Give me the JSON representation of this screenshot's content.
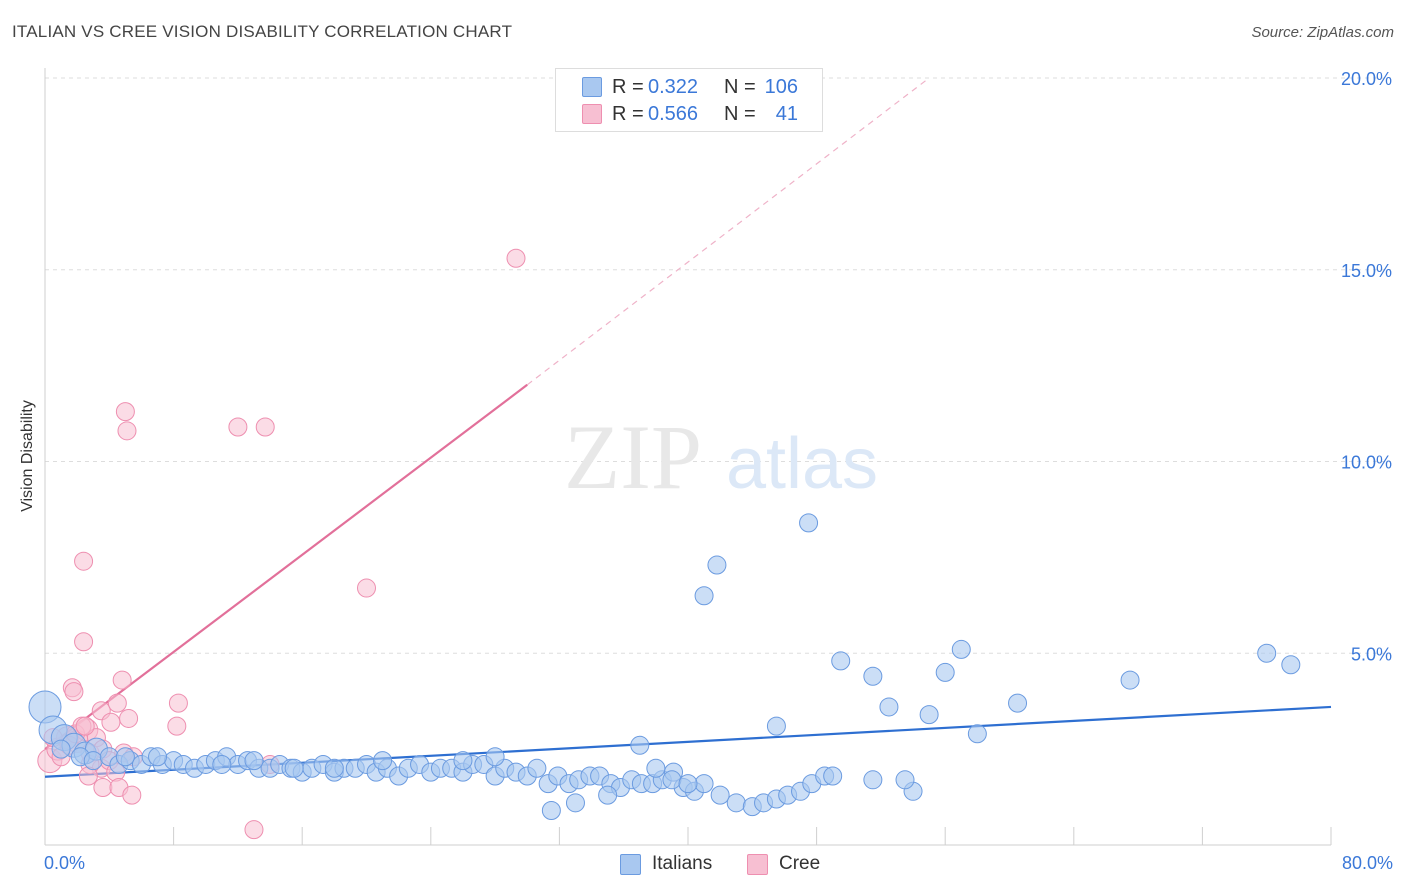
{
  "header": {
    "title": "ITALIAN VS CREE VISION DISABILITY CORRELATION CHART",
    "source": "Source: ZipAtlas.com"
  },
  "watermark": {
    "zip": "ZIP",
    "atlas": "atlas"
  },
  "stats": {
    "italians": {
      "r_label": "R =",
      "r_value": "0.322",
      "n_label": "N =",
      "n_value": "106"
    },
    "cree": {
      "r_label": "R =",
      "r_value": "0.566",
      "n_label": "N =",
      "n_value": "41"
    }
  },
  "legend": {
    "italians": "Italians",
    "cree": "Cree"
  },
  "colors": {
    "italians_fill": "#a9c8f0",
    "italians_stroke": "#6b9be0",
    "italians_line": "#2e6fd1",
    "cree_fill": "#f7bfd2",
    "cree_stroke": "#ee8fb0",
    "cree_line": "#e2709a",
    "tick_label": "#3b78d8",
    "grid": "#dddddd"
  },
  "chart_data": {
    "type": "scatter",
    "title": "ITALIAN VS CREE VISION DISABILITY CORRELATION CHART",
    "xlabel": "",
    "ylabel": "Vision Disability",
    "xlim": [
      0,
      80
    ],
    "ylim": [
      0,
      20
    ],
    "x_tick_labels": [
      "0.0%",
      "80.0%"
    ],
    "y_ticks": [
      5,
      10,
      15,
      20
    ],
    "y_tick_labels": [
      "5.0%",
      "10.0%",
      "15.0%",
      "20.0%"
    ],
    "grid": true,
    "legend_position": "bottom-center",
    "series": [
      {
        "name": "Italians",
        "r": 0.322,
        "n": 106,
        "trend": {
          "x": [
            0,
            80
          ],
          "y": [
            1.78,
            3.6
          ],
          "dashed_extension": false
        },
        "points": [
          [
            0,
            3.6,
            16
          ],
          [
            0.5,
            3.0,
            14
          ],
          [
            1.2,
            2.8,
            13
          ],
          [
            1.8,
            2.6,
            12
          ],
          [
            2.5,
            2.4,
            11
          ],
          [
            3.2,
            2.5,
            11
          ],
          [
            1.0,
            2.5,
            9
          ],
          [
            2.2,
            2.3,
            9
          ],
          [
            3.0,
            2.2,
            9
          ],
          [
            4.0,
            2.3,
            9
          ],
          [
            4.6,
            2.1,
            9
          ],
          [
            5.3,
            2.2,
            9
          ],
          [
            6.0,
            2.1,
            9
          ],
          [
            6.6,
            2.3,
            9
          ],
          [
            7.3,
            2.1,
            9
          ],
          [
            8.0,
            2.2,
            9
          ],
          [
            8.6,
            2.1,
            9
          ],
          [
            9.3,
            2.0,
            9
          ],
          [
            10.0,
            2.1,
            9
          ],
          [
            10.6,
            2.2,
            9
          ],
          [
            11.3,
            2.3,
            9
          ],
          [
            12.0,
            2.1,
            9
          ],
          [
            12.6,
            2.2,
            9
          ],
          [
            13.3,
            2.0,
            9
          ],
          [
            14.0,
            2.0,
            9
          ],
          [
            14.6,
            2.1,
            9
          ],
          [
            15.3,
            2.0,
            9
          ],
          [
            16.0,
            1.9,
            9
          ],
          [
            16.6,
            2.0,
            9
          ],
          [
            17.3,
            2.1,
            9
          ],
          [
            18.0,
            1.9,
            9
          ],
          [
            18.6,
            2.0,
            9
          ],
          [
            19.3,
            2.0,
            9
          ],
          [
            20.0,
            2.1,
            9
          ],
          [
            20.6,
            1.9,
            9
          ],
          [
            21.3,
            2.0,
            9
          ],
          [
            22.0,
            1.8,
            9
          ],
          [
            22.6,
            2.0,
            9
          ],
          [
            23.3,
            2.1,
            9
          ],
          [
            24.0,
            1.9,
            9
          ],
          [
            24.6,
            2.0,
            9
          ],
          [
            25.3,
            2.0,
            9
          ],
          [
            26.0,
            1.9,
            9
          ],
          [
            26.6,
            2.1,
            9
          ],
          [
            27.3,
            2.1,
            9
          ],
          [
            28.0,
            1.8,
            9
          ],
          [
            28.6,
            2.0,
            9
          ],
          [
            29.3,
            1.9,
            9
          ],
          [
            30.0,
            1.8,
            9
          ],
          [
            30.6,
            2.0,
            9
          ],
          [
            31.3,
            1.6,
            9
          ],
          [
            31.9,
            1.8,
            9
          ],
          [
            32.6,
            1.6,
            9
          ],
          [
            33.2,
            1.7,
            9
          ],
          [
            33.9,
            1.8,
            9
          ],
          [
            34.5,
            1.8,
            9
          ],
          [
            35.2,
            1.6,
            9
          ],
          [
            35.8,
            1.5,
            9
          ],
          [
            36.5,
            1.7,
            9
          ],
          [
            37.1,
            1.6,
            9
          ],
          [
            37.8,
            1.6,
            9
          ],
          [
            38.4,
            1.7,
            9
          ],
          [
            39.1,
            1.9,
            9
          ],
          [
            39.7,
            1.5,
            9
          ],
          [
            40.4,
            1.4,
            9
          ],
          [
            41.0,
            1.6,
            9
          ],
          [
            42.0,
            1.3,
            9
          ],
          [
            43.0,
            1.1,
            9
          ],
          [
            44.0,
            1.0,
            9
          ],
          [
            44.7,
            1.1,
            9
          ],
          [
            45.5,
            1.2,
            9
          ],
          [
            46.2,
            1.3,
            9
          ],
          [
            47.0,
            1.4,
            9
          ],
          [
            47.7,
            1.6,
            9
          ],
          [
            48.5,
            1.8,
            9
          ],
          [
            37.0,
            2.6,
            9
          ],
          [
            38.0,
            2.0,
            9
          ],
          [
            39.0,
            1.7,
            9
          ],
          [
            40.0,
            1.6,
            9
          ],
          [
            35.0,
            1.3,
            9
          ],
          [
            33.0,
            1.1,
            9
          ],
          [
            31.5,
            0.9,
            9
          ],
          [
            28.0,
            2.3,
            9
          ],
          [
            26.0,
            2.2,
            9
          ],
          [
            21.0,
            2.2,
            9
          ],
          [
            18.0,
            2.0,
            9
          ],
          [
            15.5,
            2.0,
            9
          ],
          [
            13.0,
            2.2,
            9
          ],
          [
            11.0,
            2.1,
            9
          ],
          [
            7.0,
            2.3,
            9
          ],
          [
            5.0,
            2.3,
            9
          ],
          [
            49.0,
            1.8,
            9
          ],
          [
            51.5,
            1.7,
            9
          ],
          [
            54.0,
            1.4,
            9
          ],
          [
            41.0,
            6.5,
            9
          ],
          [
            41.8,
            7.3,
            9
          ],
          [
            45.5,
            3.1,
            9
          ],
          [
            47.5,
            8.4,
            9
          ],
          [
            49.5,
            4.8,
            9
          ],
          [
            51.5,
            4.4,
            9
          ],
          [
            52.5,
            3.6,
            9
          ],
          [
            53.5,
            1.7,
            9
          ],
          [
            55.0,
            3.4,
            9
          ],
          [
            56.0,
            4.5,
            9
          ],
          [
            57.0,
            5.1,
            9
          ],
          [
            58.0,
            2.9,
            9
          ],
          [
            60.5,
            3.7,
            9
          ],
          [
            67.5,
            4.3,
            9
          ],
          [
            76.0,
            5.0,
            9
          ],
          [
            77.5,
            4.7,
            9
          ]
        ]
      },
      {
        "name": "Cree",
        "r": 0.566,
        "n": 41,
        "trend": {
          "x": [
            0,
            30
          ],
          "y": [
            2.5,
            12.0
          ],
          "dashed_extension": {
            "x": [
              30,
              55
            ],
            "y": [
              12.0,
              20.0
            ]
          }
        },
        "points": [
          [
            0.3,
            2.2,
            12
          ],
          [
            0.8,
            2.5,
            11
          ],
          [
            1.4,
            2.8,
            11
          ],
          [
            2.0,
            2.7,
            11
          ],
          [
            2.6,
            3.0,
            11
          ],
          [
            0.5,
            2.8,
            9
          ],
          [
            1.0,
            2.3,
            9
          ],
          [
            1.5,
            2.6,
            9
          ],
          [
            1.9,
            2.9,
            9
          ],
          [
            2.3,
            3.1,
            9
          ],
          [
            2.8,
            2.4,
            9
          ],
          [
            3.2,
            2.8,
            9
          ],
          [
            3.6,
            2.5,
            9
          ],
          [
            3.5,
            2.0,
            9
          ],
          [
            4.0,
            2.2,
            9
          ],
          [
            4.4,
            1.9,
            9
          ],
          [
            4.9,
            2.4,
            9
          ],
          [
            3.6,
            1.5,
            9
          ],
          [
            4.6,
            1.5,
            9
          ],
          [
            5.5,
            2.3,
            9
          ],
          [
            5.4,
            1.3,
            9
          ],
          [
            2.5,
            3.1,
            9
          ],
          [
            1.7,
            4.1,
            9
          ],
          [
            1.8,
            4.0,
            9
          ],
          [
            2.4,
            5.3,
            9
          ],
          [
            2.8,
            2.1,
            9
          ],
          [
            2.7,
            1.8,
            9
          ],
          [
            2.4,
            7.4,
            9
          ],
          [
            5.0,
            11.3,
            9
          ],
          [
            5.1,
            10.8,
            9
          ],
          [
            3.5,
            3.5,
            9
          ],
          [
            4.5,
            3.7,
            9
          ],
          [
            4.8,
            4.3,
            9
          ],
          [
            5.2,
            3.3,
            9
          ],
          [
            4.1,
            3.2,
            9
          ],
          [
            8.2,
            3.1,
            9
          ],
          [
            8.3,
            3.7,
            9
          ],
          [
            12.0,
            10.9,
            9
          ],
          [
            13.7,
            10.9,
            9
          ],
          [
            20.0,
            6.7,
            9
          ],
          [
            29.3,
            15.3,
            9
          ],
          [
            13.0,
            0.4,
            9
          ],
          [
            14.0,
            2.1,
            9
          ]
        ]
      }
    ]
  }
}
